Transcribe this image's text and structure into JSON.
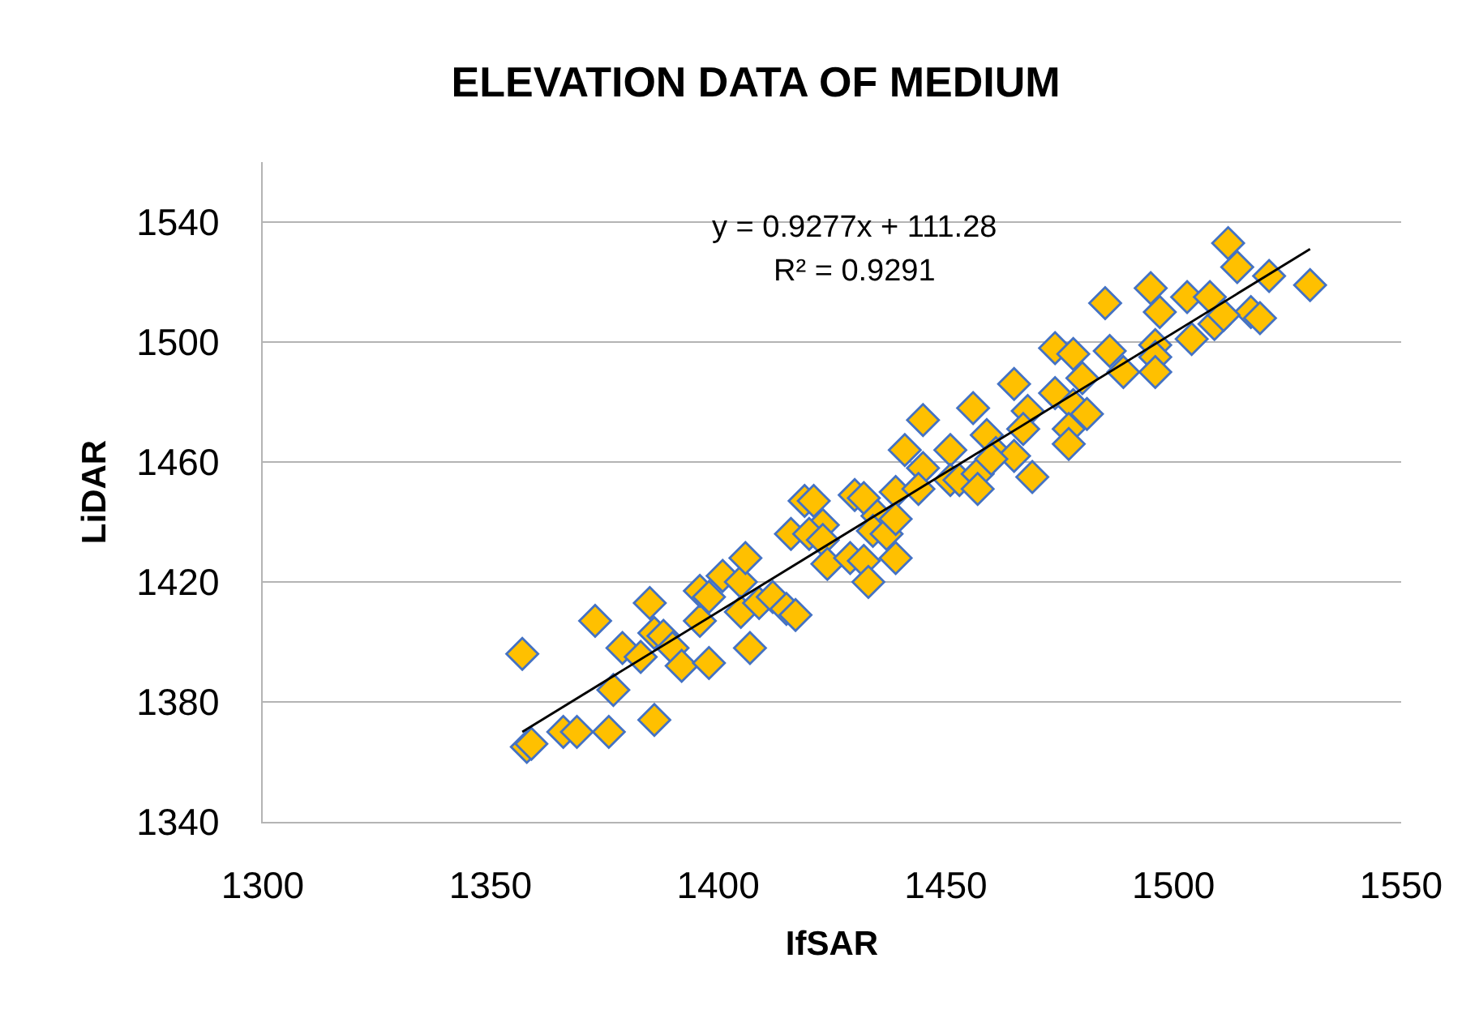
{
  "chart_data": {
    "type": "scatter",
    "title": "ELEVATION DATA OF MEDIUM",
    "xlabel": "IfSAR",
    "ylabel": "LiDAR",
    "xlim": [
      1300,
      1550
    ],
    "xticks": [
      1300,
      1350,
      1400,
      1450,
      1500,
      1550
    ],
    "ylim": [
      1340,
      1560
    ],
    "yticks": [
      1340,
      1380,
      1420,
      1460,
      1500,
      1540
    ],
    "grid": "y",
    "marker": "diamond",
    "annotations": [
      "y = 0.9277x + 111.28",
      "R² = 0.9291"
    ],
    "series": [
      {
        "color": "#ffc000",
        "x": [
          1357,
          1358,
          1359,
          1366,
          1369,
          1376,
          1386,
          1377,
          1373,
          1379,
          1383,
          1385,
          1386,
          1388,
          1390,
          1392,
          1398,
          1396,
          1396,
          1398,
          1401,
          1405,
          1406,
          1405,
          1407,
          1409,
          1412,
          1416,
          1415,
          1417,
          1419,
          1421,
          1423,
          1420,
          1423,
          1424,
          1429,
          1432,
          1433,
          1430,
          1432,
          1435,
          1434,
          1437,
          1439,
          1439,
          1439,
          1441,
          1445,
          1445,
          1444,
          1451,
          1451,
          1453,
          1456,
          1457,
          1457,
          1459,
          1461,
          1512,
          1514,
          1521,
          1530,
          1517,
          1519,
          1495,
          1497,
          1503,
          1508,
          1509,
          1511,
          1504,
          1485,
          1474,
          1478,
          1486,
          1489,
          1496,
          1496,
          1496,
          1465,
          1480,
          1474,
          1478,
          1481,
          1468,
          1467,
          1477,
          1477,
          1465,
          1469,
          1460
        ],
        "values": [
          1396,
          1365,
          1366,
          1370,
          1370,
          1370,
          1374,
          1384,
          1407,
          1398,
          1395,
          1413,
          1403,
          1402,
          1398,
          1392,
          1393,
          1407,
          1417,
          1415,
          1422,
          1420,
          1428,
          1410,
          1398,
          1413,
          1415,
          1436,
          1411,
          1409,
          1447,
          1447,
          1439,
          1436,
          1434,
          1426,
          1428,
          1427,
          1420,
          1449,
          1448,
          1442,
          1437,
          1436,
          1428,
          1450,
          1441,
          1464,
          1474,
          1458,
          1451,
          1464,
          1454,
          1454,
          1478,
          1456,
          1451,
          1469,
          1463,
          1533,
          1525,
          1522,
          1519,
          1510,
          1508,
          1518,
          1510,
          1515,
          1515,
          1506,
          1509,
          1501,
          1513,
          1498,
          1496,
          1497,
          1490,
          1499,
          1495,
          1490,
          1486,
          1488,
          1483,
          1479,
          1476,
          1477,
          1471,
          1471,
          1466,
          1462,
          1455,
          1461
        ]
      },
      {
        "type": "line",
        "color": "#000000",
        "marker": "none",
        "x": [
          1357,
          1530
        ],
        "values": [
          1370,
          1531
        ]
      }
    ]
  }
}
